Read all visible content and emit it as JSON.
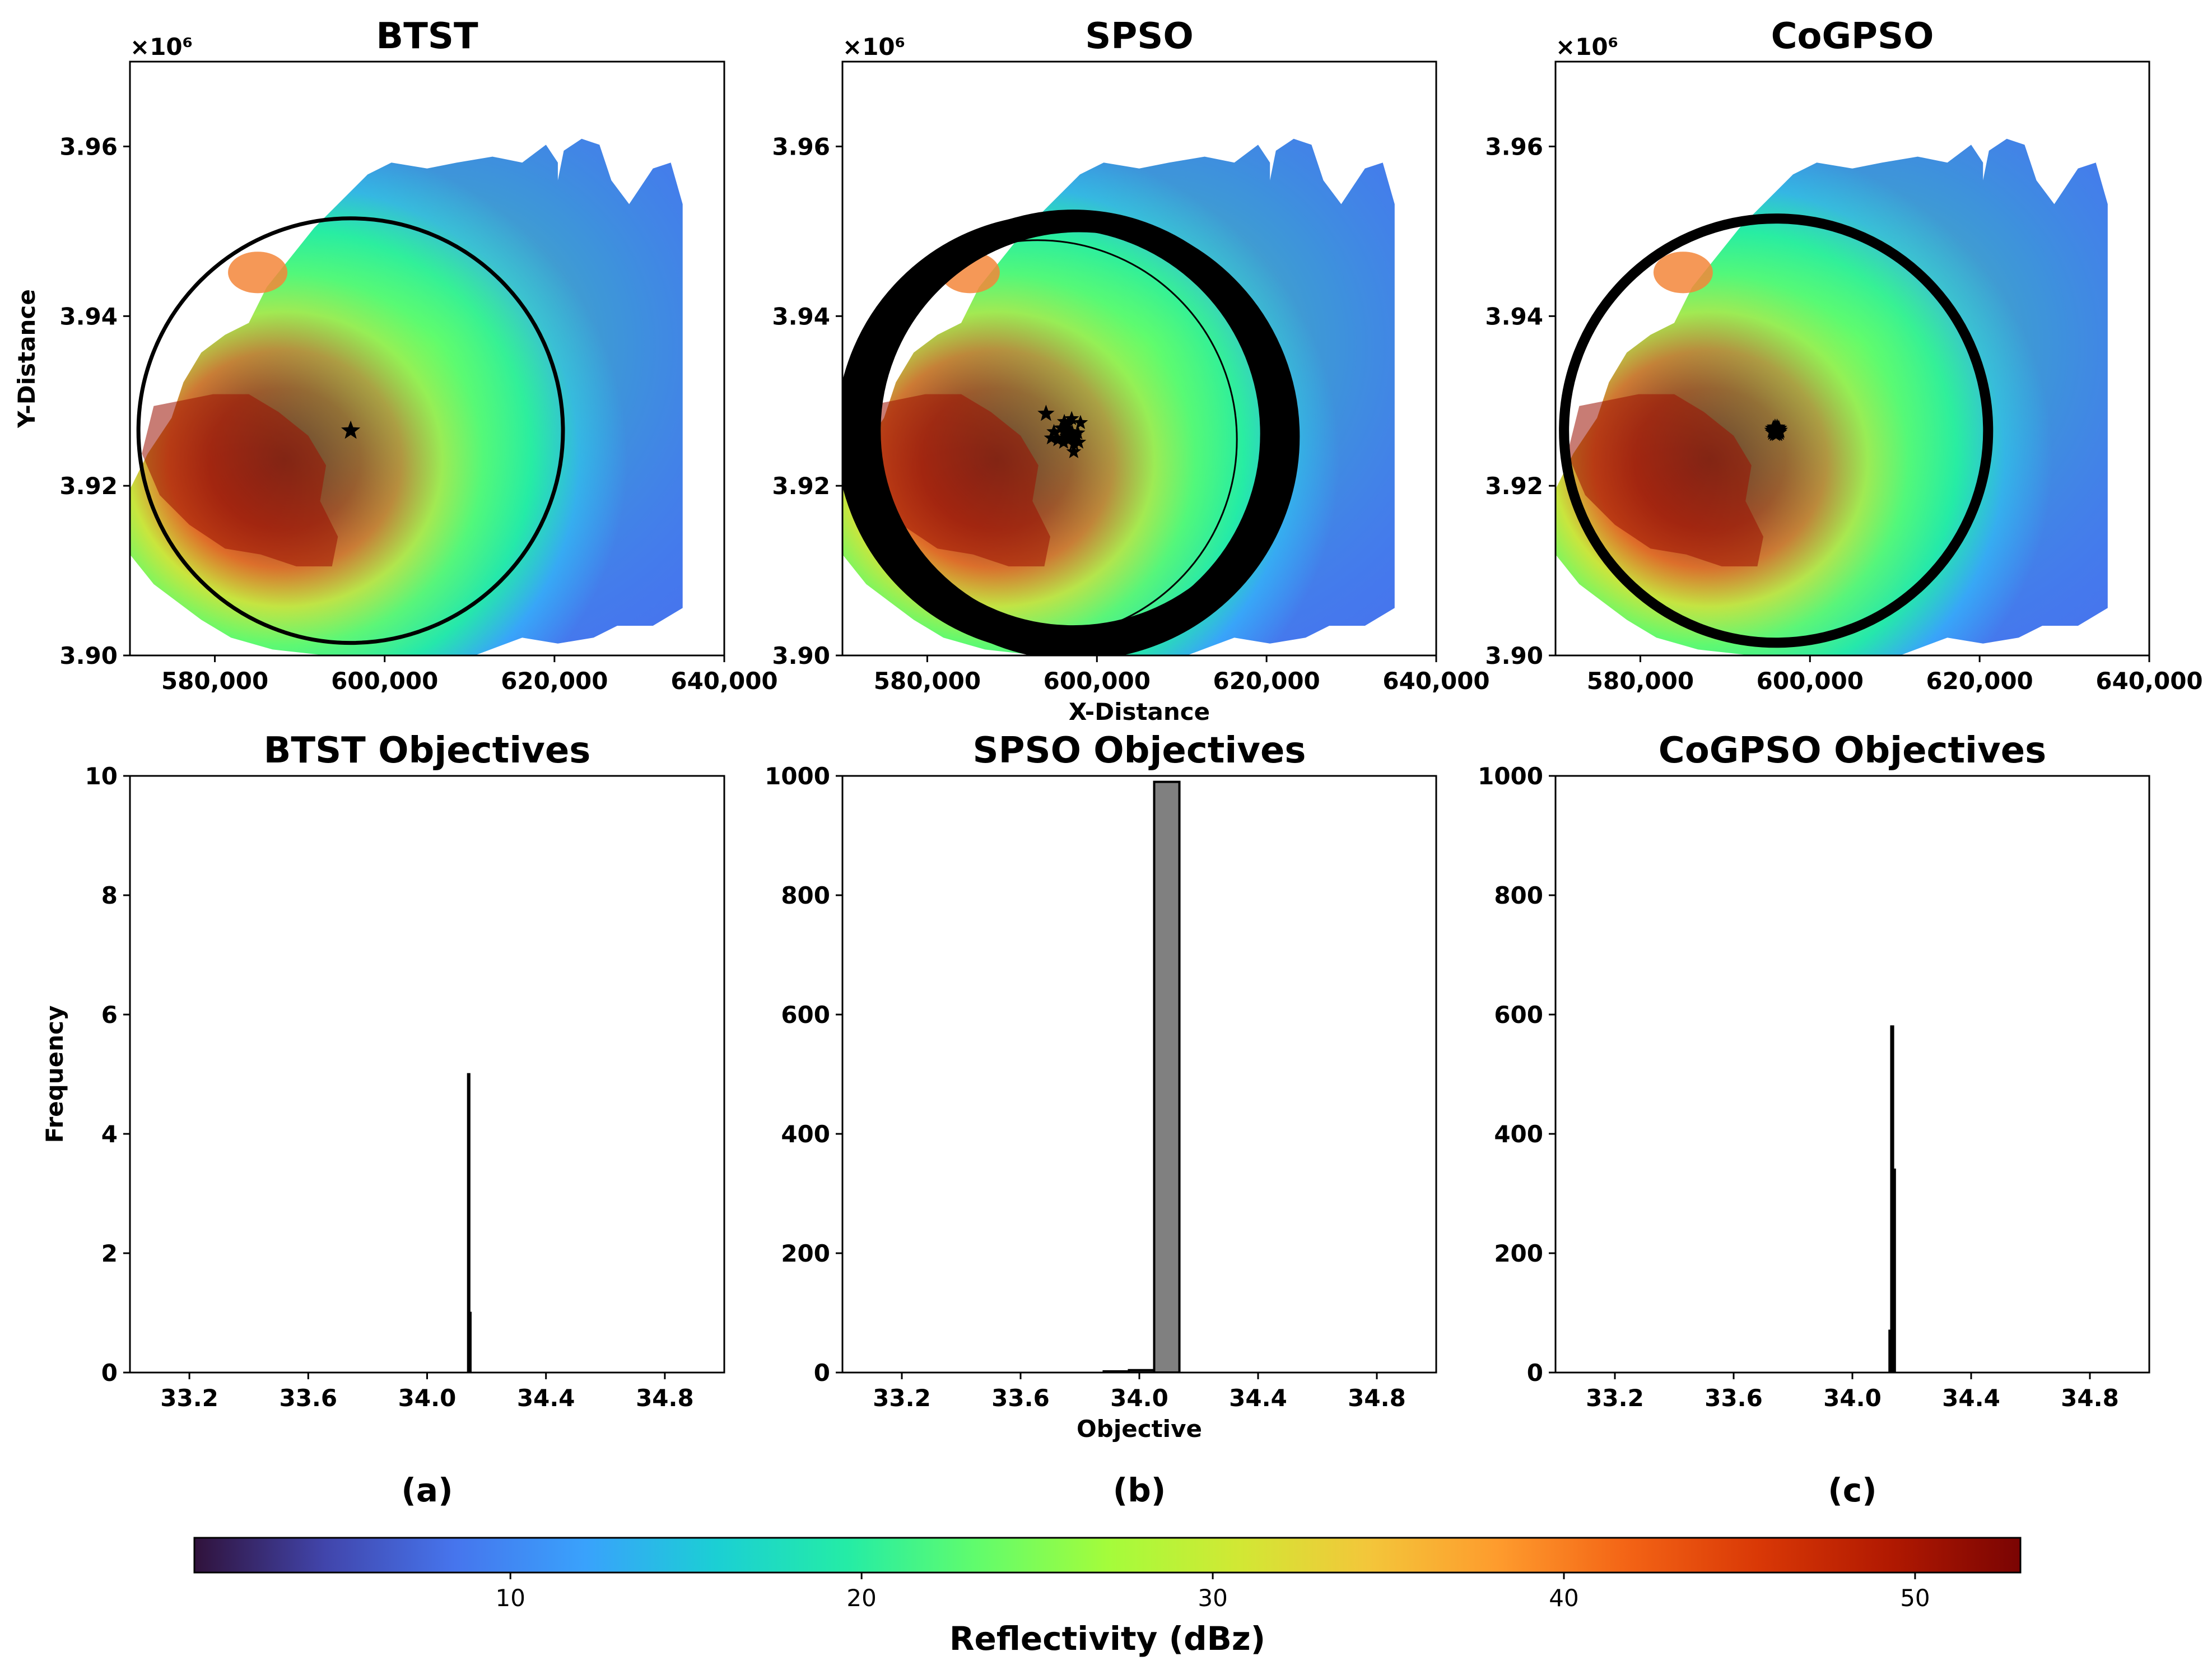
{
  "panel_labels": [
    "(a)",
    "(b)",
    "(c)"
  ],
  "colorbar": {
    "label": "Reflectivity (dBz)",
    "range": [
      1,
      53
    ],
    "ticks": [
      10,
      20,
      30,
      40,
      50
    ],
    "tick_labels": [
      "10",
      "20",
      "30",
      "40",
      "50"
    ],
    "colors": [
      "#30123b",
      "#4145ab",
      "#4675ed",
      "#39a2fc",
      "#1bcfd4",
      "#24eca6",
      "#61fc6c",
      "#a4fc3b",
      "#d1e834",
      "#f3c63a",
      "#fe9b2d",
      "#f36315",
      "#d93806",
      "#b11901",
      "#7a0403"
    ]
  },
  "chart_data": [
    {
      "type": "heatmap",
      "title": "BTST",
      "xlabel": "",
      "ylabel": "Y-Distance",
      "offset_label": "×10⁶",
      "xlim": [
        570000,
        640000
      ],
      "ylim": [
        3.9,
        3.97
      ],
      "xticks": [
        580000,
        600000,
        620000,
        640000
      ],
      "xtick_labels": [
        "580,000",
        "600,000",
        "620,000",
        "640,000"
      ],
      "yticks": [
        3.9,
        3.92,
        3.94,
        3.96
      ],
      "ytick_labels": [
        "3.90",
        "3.92",
        "3.94",
        "3.96"
      ],
      "circle": {
        "center_x": 596000,
        "center_y": 3.9265,
        "radius": 25000,
        "line": "thin"
      },
      "star_center": {
        "x": 596000,
        "y": 3.9265
      }
    },
    {
      "type": "heatmap",
      "title": "SPSO",
      "xlabel": "X-Distance",
      "ylabel": "",
      "offset_label": "×10⁶",
      "xlim": [
        570000,
        640000
      ],
      "ylim": [
        3.9,
        3.97
      ],
      "xticks": [
        580000,
        600000,
        620000,
        640000
      ],
      "xtick_labels": [
        "580,000",
        "600,000",
        "620,000",
        "640,000"
      ],
      "yticks": [
        3.9,
        3.92,
        3.94,
        3.96
      ],
      "ytick_labels": [
        "3.90",
        "3.92",
        "3.94",
        "3.96"
      ],
      "circle": {
        "center_x": 596500,
        "center_y": 3.9265,
        "radius": 25000,
        "line": "thick"
      },
      "star_center": {
        "x": 594000,
        "y": 3.9285
      }
    },
    {
      "type": "heatmap",
      "title": "CoGPSO",
      "xlabel": "",
      "ylabel": "",
      "offset_label": "×10⁶",
      "xlim": [
        570000,
        640000
      ],
      "ylim": [
        3.9,
        3.97
      ],
      "xticks": [
        580000,
        600000,
        620000,
        640000
      ],
      "xtick_labels": [
        "580,000",
        "600,000",
        "620,000",
        "640,000"
      ],
      "yticks": [
        3.9,
        3.92,
        3.94,
        3.96
      ],
      "ytick_labels": [
        "3.90",
        "3.92",
        "3.94",
        "3.96"
      ],
      "circle": {
        "center_x": 596000,
        "center_y": 3.9265,
        "radius": 25000,
        "line": "thick"
      },
      "star_center": {
        "x": 596000,
        "y": 3.9265
      }
    },
    {
      "type": "bar",
      "title": "BTST Objectives",
      "xlabel": "",
      "ylabel": "Frequency",
      "xlim": [
        33.0,
        35.0
      ],
      "ylim": [
        0,
        10
      ],
      "xticks": [
        33.2,
        33.6,
        34.0,
        34.4,
        34.8
      ],
      "xtick_labels": [
        "33.2",
        "33.6",
        "34.0",
        "34.4",
        "34.8"
      ],
      "yticks": [
        0,
        2,
        4,
        6,
        8,
        10
      ],
      "ytick_labels": [
        "0",
        "2",
        "4",
        "6",
        "8",
        "10"
      ],
      "bins": [
        {
          "x0": 34.138,
          "x1": 34.142,
          "count": 5
        },
        {
          "x0": 34.142,
          "x1": 34.146,
          "count": 1
        }
      ]
    },
    {
      "type": "bar",
      "title": "SPSO Objectives",
      "xlabel": "Objective",
      "ylabel": "",
      "xlim": [
        33.0,
        35.0
      ],
      "ylim": [
        0,
        1000
      ],
      "xticks": [
        33.2,
        33.6,
        34.0,
        34.4,
        34.8
      ],
      "xtick_labels": [
        "33.2",
        "33.6",
        "34.0",
        "34.4",
        "34.8"
      ],
      "yticks": [
        0,
        200,
        400,
        600,
        800,
        1000
      ],
      "ytick_labels": [
        "0",
        "200",
        "400",
        "600",
        "800",
        "1000"
      ],
      "bins": [
        {
          "x0": 33.88,
          "x1": 33.965,
          "count": 2
        },
        {
          "x0": 33.965,
          "x1": 34.05,
          "count": 4
        },
        {
          "x0": 34.05,
          "x1": 34.135,
          "count": 990
        }
      ]
    },
    {
      "type": "bar",
      "title": "CoGPSO Objectives",
      "xlabel": "",
      "ylabel": "",
      "xlim": [
        33.0,
        35.0
      ],
      "ylim": [
        0,
        1000
      ],
      "xticks": [
        33.2,
        33.6,
        34.0,
        34.4,
        34.8
      ],
      "xtick_labels": [
        "33.2",
        "33.6",
        "34.0",
        "34.4",
        "34.8"
      ],
      "yticks": [
        0,
        200,
        400,
        600,
        800,
        1000
      ],
      "ytick_labels": [
        "0",
        "200",
        "400",
        "600",
        "800",
        "1000"
      ],
      "bins": [
        {
          "x0": 34.125,
          "x1": 34.131,
          "count": 70
        },
        {
          "x0": 34.131,
          "x1": 34.137,
          "count": 580
        },
        {
          "x0": 34.137,
          "x1": 34.143,
          "count": 340
        }
      ]
    }
  ]
}
